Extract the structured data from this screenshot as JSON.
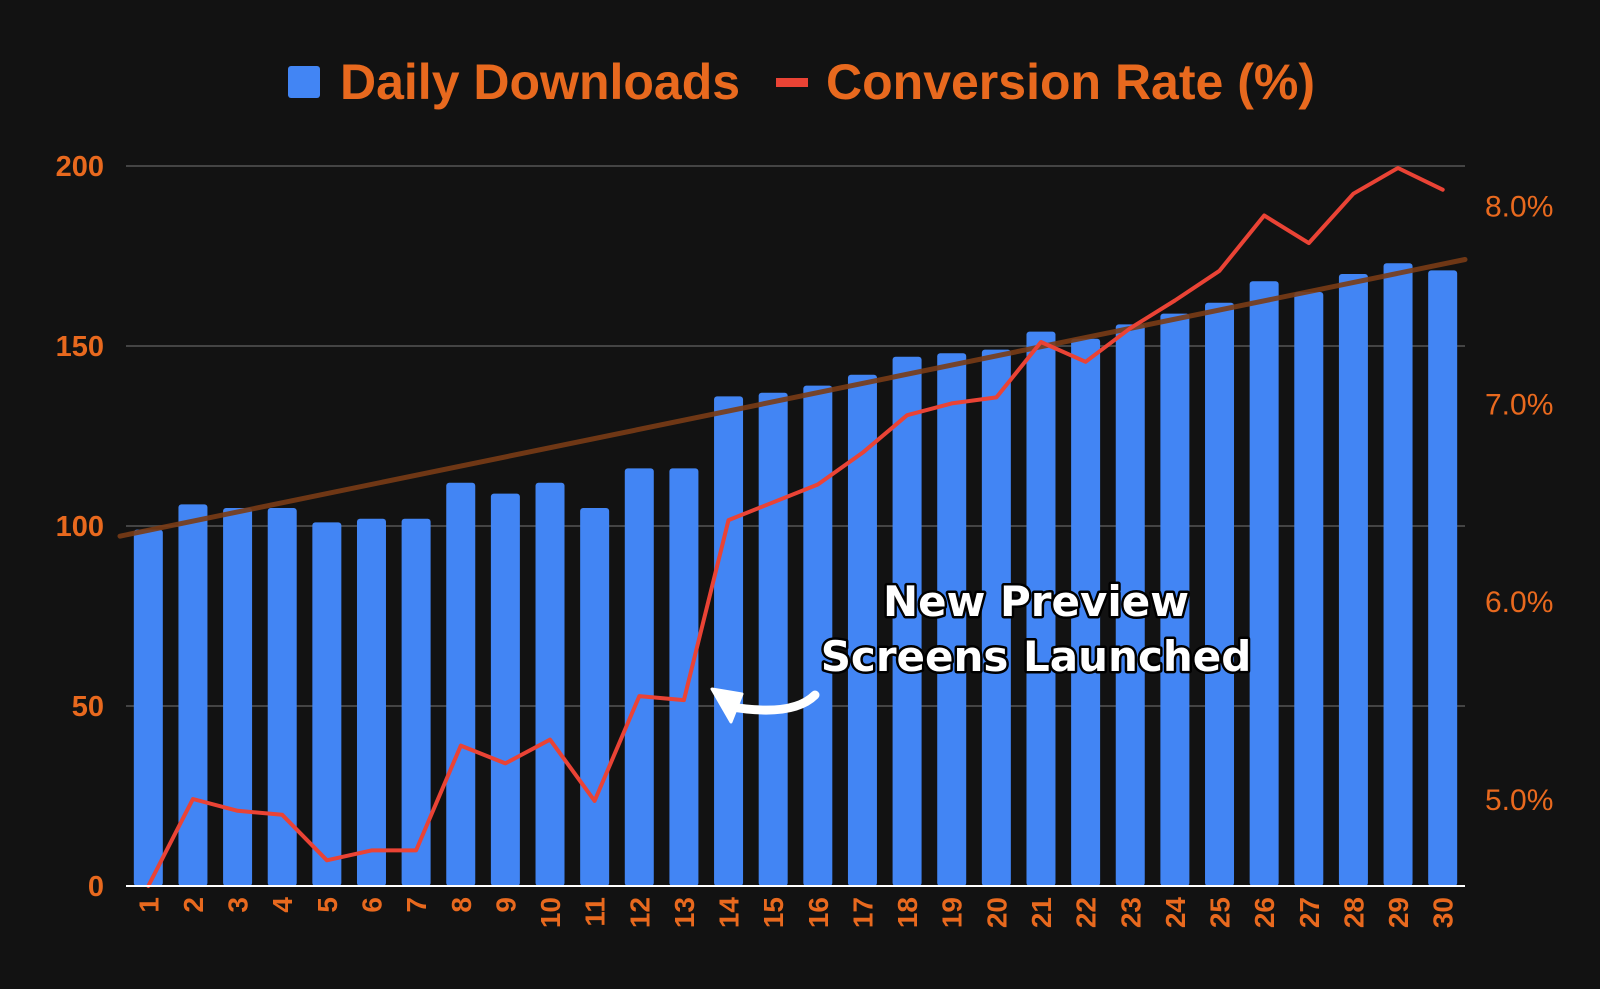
{
  "colors": {
    "background": "#121212",
    "bar": "#4285f4",
    "line": "#ea4335",
    "trend": "#7a3c16",
    "text_accent": "#e8691e",
    "grid": "#444444",
    "annotation": "#ffffff"
  },
  "legend": {
    "bars_label": "Daily Downloads",
    "line_label": "Conversion Rate (%)"
  },
  "annotation": {
    "line1": "New Preview",
    "line2": "Screens Launched",
    "arrow_icon": "curved-arrow-left-icon"
  },
  "chart_data": {
    "type": "bar",
    "title": "",
    "xlabel": "",
    "ylabel": "",
    "categories": [
      "1",
      "2",
      "3",
      "4",
      "5",
      "6",
      "7",
      "8",
      "9",
      "10",
      "11",
      "12",
      "13",
      "14",
      "15",
      "16",
      "17",
      "18",
      "19",
      "20",
      "21",
      "22",
      "23",
      "24",
      "25",
      "26",
      "27",
      "28",
      "29",
      "30"
    ],
    "series": [
      {
        "name": "Daily Downloads",
        "type": "bar",
        "axis": "left",
        "values": [
          99,
          106,
          105,
          105,
          101,
          102,
          102,
          112,
          109,
          112,
          105,
          116,
          116,
          136,
          137,
          139,
          142,
          147,
          148,
          149,
          154,
          152,
          156,
          159,
          162,
          168,
          165,
          170,
          173,
          171
        ]
      },
      {
        "name": "Conversion Rate (%)",
        "type": "line",
        "axis": "right",
        "values": [
          4.56,
          5.0,
          4.94,
          4.92,
          4.69,
          4.74,
          4.74,
          5.27,
          5.18,
          5.3,
          4.99,
          5.52,
          5.5,
          6.41,
          6.5,
          6.59,
          6.75,
          6.94,
          7.0,
          7.03,
          7.31,
          7.21,
          7.38,
          7.52,
          7.67,
          7.95,
          7.81,
          8.06,
          8.19,
          8.08
        ]
      }
    ],
    "trendline": {
      "series": "Daily Downloads",
      "start": 98.8,
      "slope": 2.55
    },
    "ylim": [
      0,
      200
    ],
    "yticks": [
      0,
      50,
      100,
      150,
      200
    ],
    "y2lim": [
      4.56,
      8.2
    ],
    "y2ticks": [
      5.0,
      6.0,
      7.0,
      8.0
    ],
    "y2_tick_labels": [
      "5.0%",
      "6.0%",
      "7.0%",
      "8.0%"
    ],
    "grid": true,
    "legend_position": "top-center"
  }
}
